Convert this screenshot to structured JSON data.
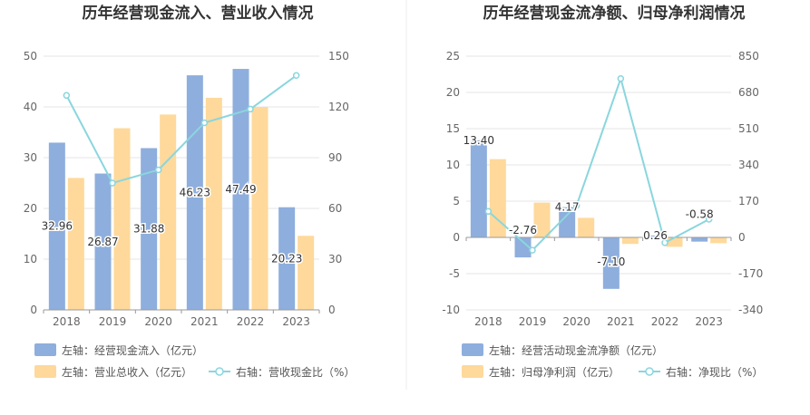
{
  "chart_data": [
    {
      "type": "bar",
      "title": "历年经营现金流入、营业收入情况",
      "categories": [
        "2018",
        "2019",
        "2020",
        "2021",
        "2022",
        "2023"
      ],
      "left_axis": {
        "min": 0,
        "max": 50,
        "ticks": [
          "0",
          "10",
          "20",
          "30",
          "40",
          "50"
        ]
      },
      "right_axis": {
        "min": 0,
        "max": 150,
        "ticks": [
          "0",
          "30",
          "60",
          "90",
          "120",
          "150"
        ]
      },
      "series": [
        {
          "name": "左轴：经营现金流入（亿元）",
          "axis": "left",
          "kind": "bar",
          "color": "#8eaedd",
          "values": [
            32.96,
            26.87,
            31.88,
            46.23,
            47.49,
            20.23
          ],
          "labels": [
            "32.96",
            "26.87",
            "31.88",
            "46.23",
            "47.49",
            "20.23"
          ]
        },
        {
          "name": "左轴：营业总收入（亿元）",
          "axis": "left",
          "kind": "bar",
          "color": "#fed99b",
          "values": [
            26.0,
            35.8,
            38.5,
            41.8,
            40.0,
            14.6
          ]
        },
        {
          "name": "右轴：营收现金比（%）",
          "axis": "right",
          "kind": "line",
          "color": "#8ad6de",
          "values": [
            126.8,
            75.0,
            82.8,
            110.6,
            118.7,
            138.6
          ]
        }
      ]
    },
    {
      "type": "bar",
      "title": "历年经营现金流净额、归母净利润情况",
      "categories": [
        "2018",
        "2019",
        "2020",
        "2021",
        "2022",
        "2023"
      ],
      "left_axis": {
        "min": -10,
        "max": 25,
        "ticks": [
          "-10",
          "-5",
          "0",
          "5",
          "10",
          "15",
          "20",
          "25"
        ]
      },
      "right_axis": {
        "min": -340,
        "max": 850,
        "ticks": [
          "-340",
          "-170",
          "0",
          "170",
          "340",
          "510",
          "680",
          "850"
        ]
      },
      "series": [
        {
          "name": "左轴：经营活动现金流净额（亿元）",
          "axis": "left",
          "kind": "bar",
          "color": "#8eaedd",
          "values": [
            13.4,
            -2.76,
            4.17,
            -7.1,
            0.26,
            -0.58
          ],
          "labels": [
            "13.40",
            "-2.76",
            "4.17",
            "-7.10",
            "0.26",
            "-0.58"
          ]
        },
        {
          "name": "左轴：归母净利润（亿元）",
          "axis": "left",
          "kind": "bar",
          "color": "#fed99b",
          "values": [
            10.8,
            4.8,
            2.7,
            -0.9,
            -1.3,
            -0.8
          ]
        },
        {
          "name": "右轴：净现比（%）",
          "axis": "right",
          "kind": "line",
          "color": "#8ad6de",
          "values": [
            122,
            -60,
            150,
            745,
            -25,
            85
          ]
        }
      ]
    }
  ]
}
